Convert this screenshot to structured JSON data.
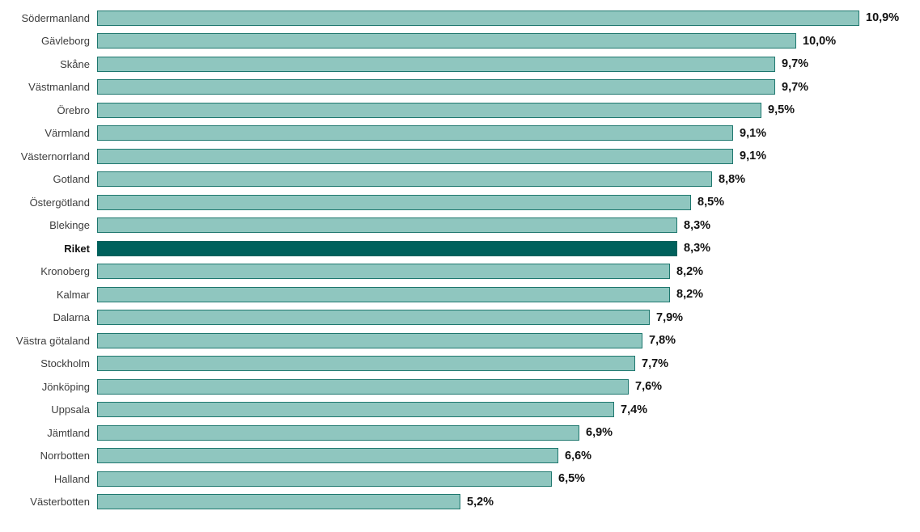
{
  "chart_data": {
    "type": "bar",
    "orientation": "horizontal",
    "title": "",
    "xlabel": "",
    "ylabel": "",
    "xlim": [
      0,
      11
    ],
    "grid": false,
    "legend": false,
    "value_format": "percent-comma-decimal",
    "categories": [
      "Södermanland",
      "Gävleborg",
      "Skåne",
      "Västmanland",
      "Örebro",
      "Värmland",
      "Västernorrland",
      "Gotland",
      "Östergötland",
      "Blekinge",
      "Riket",
      "Kronoberg",
      "Kalmar",
      "Dalarna",
      "Västra götaland",
      "Stockholm",
      "Jönköping",
      "Uppsala",
      "Jämtland",
      "Norrbotten",
      "Halland",
      "Västerbotten"
    ],
    "values": [
      10.9,
      10.0,
      9.7,
      9.7,
      9.5,
      9.1,
      9.1,
      8.8,
      8.5,
      8.3,
      8.3,
      8.2,
      8.2,
      7.9,
      7.8,
      7.7,
      7.6,
      7.4,
      6.9,
      6.6,
      6.5,
      5.2
    ],
    "value_labels": [
      "10,9%",
      "10,0%",
      "9,7%",
      "9,7%",
      "9,5%",
      "9,1%",
      "9,1%",
      "8,8%",
      "8,5%",
      "8,3%",
      "8,3%",
      "8,2%",
      "8,2%",
      "7,9%",
      "7,8%",
      "7,7%",
      "7,6%",
      "7,4%",
      "6,9%",
      "6,6%",
      "6,5%",
      "5,2%"
    ],
    "highlight_category": "Riket",
    "highlight_index": 10,
    "colors": {
      "bar_fill": "#8FC6BF",
      "bar_border": "#1E776E",
      "highlight_fill": "#00615C",
      "highlight_border": "#00615C"
    }
  }
}
